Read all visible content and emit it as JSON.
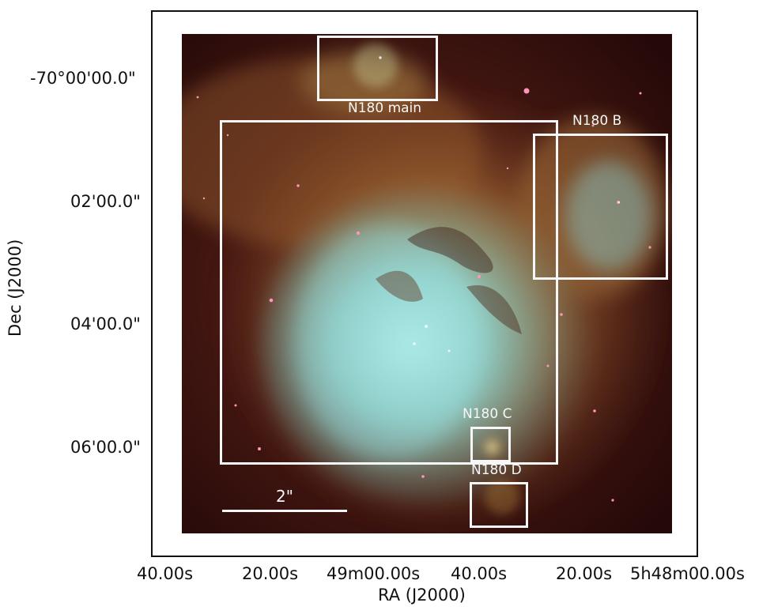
{
  "axes": {
    "x_label": "RA (J2000)",
    "y_label": "Dec (J2000)",
    "x_ticks": [
      "40.00s",
      "20.00s",
      "49m00.00s",
      "40.00s",
      "20.00s",
      "5h48m00.00s"
    ],
    "y_ticks": [
      "-70°00'00.0\"",
      "02'00.0\"",
      "04'00.0\"",
      "06'00.0\""
    ]
  },
  "regions": [
    {
      "label": "N180 main"
    },
    {
      "label": "N180 B"
    },
    {
      "label": "N180 C"
    },
    {
      "label": "N180 D"
    }
  ],
  "scalebar": {
    "label": "2\""
  },
  "colors": {
    "background_dark_red": "#2b0d0b",
    "nebula_gold": "#b98a3e",
    "nebula_cyan": "#8fd6d8",
    "box_white": "#f7f7f7"
  }
}
